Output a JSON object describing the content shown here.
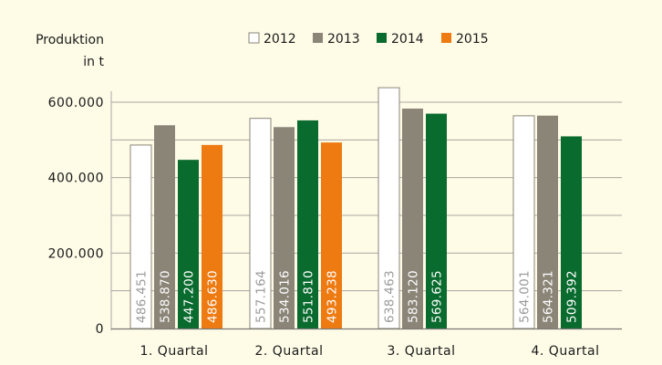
{
  "chart_data": {
    "type": "bar",
    "title": "",
    "ylabel_line1": "Produktion",
    "ylabel_line2": "in t",
    "xlabel": "",
    "categories": [
      "1. Quartal",
      "2. Quartal",
      "3. Quartal",
      "4. Quartal"
    ],
    "series": [
      {
        "name": "2012",
        "color": "#ffffff",
        "label_color": "#9a9a9a",
        "values": [
          486451,
          557164,
          638463,
          564001
        ],
        "labels": [
          "486.451",
          "557.164",
          "638.463",
          "564.001"
        ]
      },
      {
        "name": "2013",
        "color": "#8b8578",
        "label_color": "#ffffff",
        "values": [
          538870,
          534016,
          583120,
          564321
        ],
        "labels": [
          "538.870",
          "534.016",
          "583.120",
          "564.321"
        ]
      },
      {
        "name": "2014",
        "color": "#0a6b2e",
        "label_color": "#ffffff",
        "values": [
          447200,
          551810,
          569625,
          509392
        ],
        "labels": [
          "447.200",
          "551.810",
          "569.625",
          "509.392"
        ]
      },
      {
        "name": "2015",
        "color": "#ee7a12",
        "label_color": "#ffffff",
        "values": [
          486630,
          493238,
          null,
          null
        ],
        "labels": [
          "486.630",
          "493.238",
          null,
          null
        ]
      }
    ],
    "ylim": [
      0,
      600000
    ],
    "yticks": [
      0,
      200000,
      400000,
      600000
    ],
    "ytick_labels": [
      "0",
      "200.000",
      "400.000",
      "600.000"
    ],
    "grid": true,
    "legend_position": "top"
  }
}
